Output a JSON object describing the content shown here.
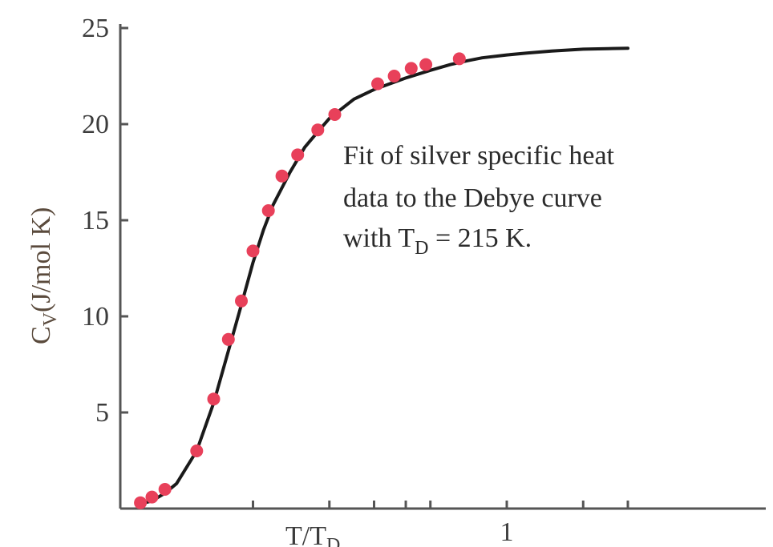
{
  "chart_data": {
    "type": "line",
    "x_scale": "log",
    "xlabel": {
      "main": "T/T",
      "sub": "D"
    },
    "ylabel": {
      "main": "C",
      "sub": "V",
      "rest": "(J/mol K)"
    },
    "xlim": [
      0.03,
      3.0
    ],
    "ylim": [
      0,
      25
    ],
    "y_ticks": [
      5,
      10,
      15,
      20,
      25
    ],
    "x_ticks": [
      0.1,
      0.2,
      0.3,
      0.4,
      0.5,
      1,
      2,
      3
    ],
    "x_tick_labels": [
      {
        "value": 1,
        "label": "1"
      }
    ],
    "annotation": {
      "line1": "Fit of silver specific heat",
      "line2": "data to the Debye curve",
      "line3_prefix": "with T",
      "line3_sub": "D",
      "line3_suffix": " = 215 K."
    },
    "series": [
      {
        "kind": "curve",
        "color": "#1a1a1a",
        "x": [
          0.035,
          0.04,
          0.045,
          0.05,
          0.06,
          0.07,
          0.08,
          0.09,
          0.1,
          0.11,
          0.12,
          0.14,
          0.16,
          0.18,
          0.2,
          0.25,
          0.3,
          0.4,
          0.5,
          0.6,
          0.7,
          0.8,
          1.0,
          1.2,
          1.5,
          2.0,
          2.5,
          3.0
        ],
        "y": [
          0.2,
          0.4,
          0.8,
          1.3,
          3.0,
          5.5,
          8.2,
          10.6,
          12.8,
          14.5,
          15.8,
          17.5,
          18.8,
          19.6,
          20.3,
          21.3,
          21.8,
          22.4,
          22.8,
          23.1,
          23.3,
          23.45,
          23.6,
          23.7,
          23.8,
          23.9,
          23.93,
          23.95
        ]
      },
      {
        "kind": "points",
        "color": "#e8405a",
        "x": [
          0.036,
          0.04,
          0.045,
          0.06,
          0.07,
          0.08,
          0.09,
          0.1,
          0.115,
          0.13,
          0.15,
          0.18,
          0.21,
          0.31,
          0.36,
          0.42,
          0.48,
          0.65
        ],
        "y": [
          0.3,
          0.6,
          1.0,
          3.0,
          5.7,
          8.8,
          10.8,
          13.4,
          15.5,
          17.3,
          18.4,
          19.7,
          20.5,
          22.1,
          22.5,
          22.9,
          23.1,
          23.4
        ]
      }
    ]
  }
}
